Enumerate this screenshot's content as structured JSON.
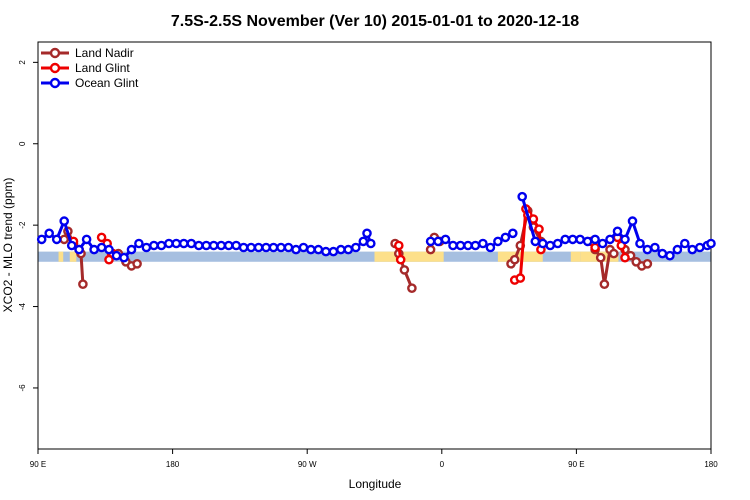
{
  "chart_data": {
    "type": "line",
    "title": "7.5S-2.5S November (Ver 10)   2015-01-01 to 2020-12-18",
    "xlabel": "Longitude",
    "ylabel": "XCO2 - MLO trend (ppm)",
    "xlim": [
      90,
      450
    ],
    "ylim": [
      -7.5,
      2.5
    ],
    "x_ticks": [
      90,
      162,
      234,
      306,
      378,
      450
    ],
    "x_tick_labels": [
      "90 E",
      "180",
      "90 W",
      "0",
      "90 E",
      "180"
    ],
    "y_ticks": [
      -6,
      -4,
      -2,
      0,
      2
    ],
    "y_tick_labels": [
      "-6",
      "-4",
      "-2",
      "0",
      "2"
    ],
    "legend_position": "top-left",
    "series": [
      {
        "name": "Land Nadir",
        "color": "#a52a2a",
        "segments": [
          [
            [
              104.0,
              -2.35
            ],
            [
              106.0,
              -2.15
            ],
            [
              109.0,
              -2.45
            ],
            [
              113.0,
              -2.7
            ],
            [
              114.0,
              -3.45
            ]
          ],
          [
            [
              133.0,
              -2.7
            ],
            [
              137.0,
              -2.9
            ],
            [
              140.0,
              -3.0
            ],
            [
              143.0,
              -2.95
            ]
          ],
          [
            [
              281.0,
              -2.45
            ],
            [
              283.0,
              -2.7
            ],
            [
              286.0,
              -3.1
            ],
            [
              290.0,
              -3.55
            ]
          ],
          [
            [
              300.0,
              -2.6
            ],
            [
              302.0,
              -2.3
            ],
            [
              305.0,
              -2.4
            ]
          ],
          [
            [
              343.0,
              -2.95
            ],
            [
              345.0,
              -2.85
            ],
            [
              348.0,
              -2.5
            ],
            [
              352.0,
              -1.65
            ],
            [
              355.0,
              -2.05
            ],
            [
              359.0,
              -2.4
            ]
          ],
          [
            [
              388.0,
              -2.6
            ],
            [
              391.0,
              -2.8
            ],
            [
              393.0,
              -3.45
            ],
            [
              396.0,
              -2.6
            ],
            [
              398.0,
              -2.7
            ]
          ],
          [
            [
              404.0,
              -2.6
            ],
            [
              407.0,
              -2.75
            ],
            [
              410.0,
              -2.9
            ],
            [
              413.0,
              -3.0
            ],
            [
              416.0,
              -2.95
            ]
          ]
        ]
      },
      {
        "name": "Land Glint",
        "color": "#ee0000",
        "segments": [
          [
            [
              109.0,
              -2.4
            ],
            [
              112.0,
              -2.6
            ]
          ],
          [
            [
              124.0,
              -2.3
            ],
            [
              127.0,
              -2.45
            ],
            [
              128.0,
              -2.85
            ],
            [
              130.0,
              -2.7
            ]
          ],
          [
            [
              283.0,
              -2.5
            ],
            [
              284.0,
              -2.85
            ]
          ],
          [
            [
              345.0,
              -3.35
            ],
            [
              348.0,
              -3.3
            ],
            [
              351.0,
              -1.6
            ],
            [
              352.0,
              -1.75
            ],
            [
              355.0,
              -1.85
            ],
            [
              358.0,
              -2.1
            ],
            [
              359.0,
              -2.6
            ]
          ],
          [
            [
              386.0,
              -2.4
            ],
            [
              388.0,
              -2.55
            ]
          ],
          [
            [
              400.0,
              -2.3
            ],
            [
              402.0,
              -2.5
            ],
            [
              404.0,
              -2.8
            ]
          ]
        ]
      },
      {
        "name": "Ocean Glint",
        "color": "#0000ee",
        "segments": [
          [
            [
              92.0,
              -2.35
            ],
            [
              96.0,
              -2.2
            ],
            [
              100.0,
              -2.35
            ],
            [
              104.0,
              -1.9
            ],
            [
              108.0,
              -2.5
            ],
            [
              112.0,
              -2.6
            ],
            [
              116.0,
              -2.35
            ],
            [
              120.0,
              -2.6
            ],
            [
              124.0,
              -2.55
            ],
            [
              128.0,
              -2.6
            ],
            [
              132.0,
              -2.75
            ],
            [
              136.0,
              -2.8
            ],
            [
              140.0,
              -2.6
            ],
            [
              144.0,
              -2.45
            ],
            [
              148.0,
              -2.55
            ],
            [
              152.0,
              -2.5
            ],
            [
              156.0,
              -2.5
            ],
            [
              160.0,
              -2.45
            ],
            [
              164.0,
              -2.45
            ],
            [
              168.0,
              -2.45
            ],
            [
              172.0,
              -2.45
            ],
            [
              176.0,
              -2.5
            ],
            [
              180.0,
              -2.5
            ],
            [
              184.0,
              -2.5
            ],
            [
              188.0,
              -2.5
            ],
            [
              192.0,
              -2.5
            ],
            [
              196.0,
              -2.5
            ],
            [
              200.0,
              -2.55
            ],
            [
              204.0,
              -2.55
            ],
            [
              208.0,
              -2.55
            ],
            [
              212.0,
              -2.55
            ],
            [
              216.0,
              -2.55
            ],
            [
              220.0,
              -2.55
            ],
            [
              224.0,
              -2.55
            ],
            [
              228.0,
              -2.6
            ],
            [
              232.0,
              -2.55
            ],
            [
              236.0,
              -2.6
            ],
            [
              240.0,
              -2.6
            ],
            [
              244.0,
              -2.65
            ],
            [
              248.0,
              -2.65
            ],
            [
              252.0,
              -2.6
            ],
            [
              256.0,
              -2.6
            ],
            [
              260.0,
              -2.55
            ],
            [
              264.0,
              -2.4
            ],
            [
              266.0,
              -2.2
            ],
            [
              268.0,
              -2.45
            ]
          ],
          [
            [
              300.0,
              -2.4
            ],
            [
              304.0,
              -2.4
            ],
            [
              308.0,
              -2.35
            ],
            [
              312.0,
              -2.5
            ],
            [
              316.0,
              -2.5
            ],
            [
              320.0,
              -2.5
            ],
            [
              324.0,
              -2.5
            ],
            [
              328.0,
              -2.45
            ],
            [
              332.0,
              -2.55
            ],
            [
              336.0,
              -2.4
            ],
            [
              340.0,
              -2.3
            ],
            [
              344.0,
              -2.2
            ]
          ],
          [
            [
              349.0,
              -1.3
            ],
            [
              356.0,
              -2.4
            ],
            [
              360.0,
              -2.45
            ],
            [
              364.0,
              -2.5
            ],
            [
              368.0,
              -2.45
            ],
            [
              372.0,
              -2.35
            ],
            [
              376.0,
              -2.35
            ],
            [
              380.0,
              -2.35
            ],
            [
              384.0,
              -2.4
            ],
            [
              388.0,
              -2.35
            ],
            [
              392.0,
              -2.45
            ],
            [
              396.0,
              -2.35
            ],
            [
              400.0,
              -2.15
            ],
            [
              404.0,
              -2.35
            ],
            [
              408.0,
              -1.9
            ],
            [
              412.0,
              -2.45
            ],
            [
              416.0,
              -2.6
            ],
            [
              420.0,
              -2.55
            ],
            [
              424.0,
              -2.7
            ],
            [
              428.0,
              -2.75
            ],
            [
              432.0,
              -2.6
            ],
            [
              436.0,
              -2.45
            ],
            [
              440.0,
              -2.6
            ],
            [
              444.0,
              -2.55
            ],
            [
              448.0,
              -2.5
            ],
            [
              450.0,
              -2.45
            ]
          ]
        ]
      }
    ],
    "background_band": {
      "y_range": [
        -2.9,
        -2.65
      ],
      "ocean_color": "#a6bfe0",
      "land_color": "#fde08a",
      "land_x_ranges": [
        [
          101.0,
          103.5
        ],
        [
          107.0,
          110.5
        ],
        [
          375.0,
          380.0
        ],
        [
          270.0,
          307.0
        ],
        [
          336.0,
          360.0
        ],
        [
          380.0,
          400.5
        ]
      ]
    }
  }
}
